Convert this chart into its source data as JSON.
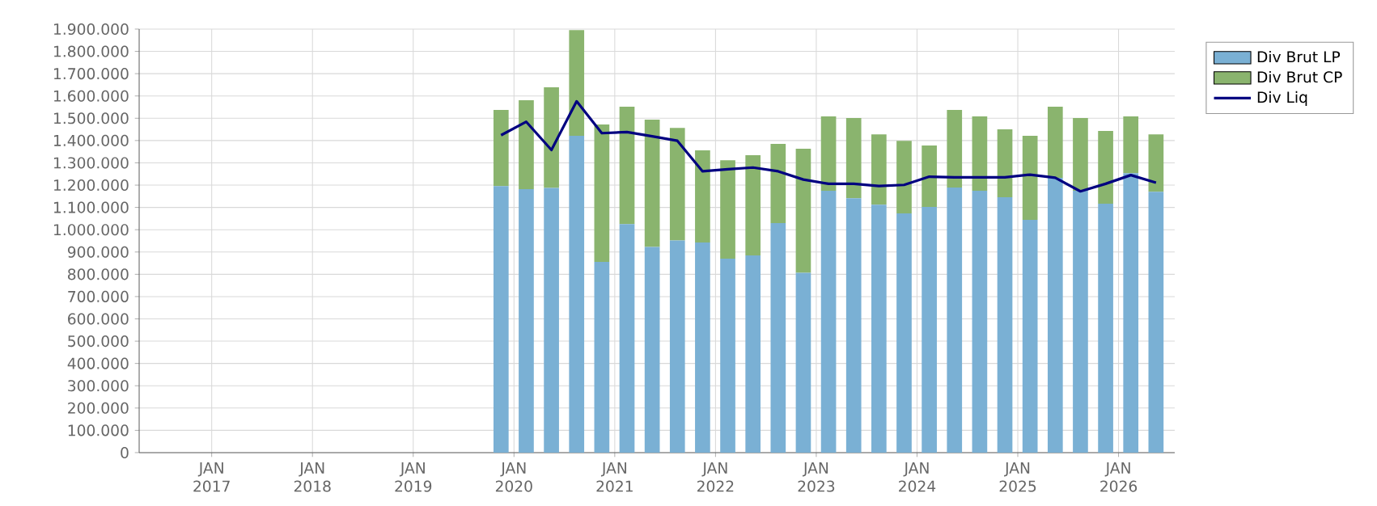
{
  "chart_data": {
    "type": "bar",
    "stacked": true,
    "x": [
      "2019-11-15",
      "2020-02-15",
      "2020-05-15",
      "2020-08-15",
      "2020-11-15",
      "2021-02-15",
      "2021-05-15",
      "2021-08-15",
      "2021-11-15",
      "2022-02-15",
      "2022-05-15",
      "2022-08-15",
      "2022-11-15",
      "2023-02-15",
      "2023-05-15",
      "2023-08-15",
      "2023-11-15",
      "2024-02-15",
      "2024-05-15",
      "2024-08-15",
      "2024-11-15",
      "2025-02-15",
      "2025-05-15",
      "2025-08-15",
      "2025-11-15",
      "2026-02-15",
      "2026-05-15"
    ],
    "series": [
      {
        "name": "Div Brut LP",
        "color": "#7ab0d4",
        "values": [
          1196000,
          1182000,
          1187000,
          1421000,
          856000,
          1025000,
          923000,
          952000,
          943000,
          870000,
          885000,
          1030000,
          807000,
          1175000,
          1141000,
          1112000,
          1073000,
          1102000,
          1189000,
          1175000,
          1146000,
          1044000,
          1233000,
          1175000,
          1117000,
          1254000,
          1170000
        ]
      },
      {
        "name": "Div Brut CP",
        "color": "#8ab46e",
        "values": [
          341000,
          399000,
          452000,
          474000,
          616000,
          527000,
          571000,
          505000,
          413000,
          442000,
          449000,
          355000,
          556000,
          333000,
          360000,
          316000,
          326000,
          276000,
          348000,
          333000,
          304000,
          377000,
          319000,
          326000,
          326000,
          254000,
          258000
        ]
      },
      {
        "name": "Div Liq",
        "type": "line",
        "color": "#000080",
        "values": [
          1424000,
          1484000,
          1358000,
          1576000,
          1433000,
          1438000,
          1419000,
          1399000,
          1262000,
          1271000,
          1279000,
          1262000,
          1225000,
          1206000,
          1206000,
          1196000,
          1201000,
          1238000,
          1235000,
          1235000,
          1235000,
          1247000,
          1233000,
          1172000,
          1206000,
          1245000,
          1211000
        ]
      }
    ],
    "xlim": [
      "2016-04-12",
      "2026-07-22"
    ],
    "xticks": [
      {
        "value": "2017-01-01",
        "label": "JAN 2017"
      },
      {
        "value": "2018-01-01",
        "label": "JAN 2018"
      },
      {
        "value": "2019-01-01",
        "label": "JAN 2019"
      },
      {
        "value": "2020-01-01",
        "label": "JAN 2020"
      },
      {
        "value": "2021-01-01",
        "label": "JAN 2021"
      },
      {
        "value": "2022-01-01",
        "label": "JAN 2022"
      },
      {
        "value": "2023-01-01",
        "label": "JAN 2023"
      },
      {
        "value": "2024-01-01",
        "label": "JAN 2024"
      },
      {
        "value": "2025-01-01",
        "label": "JAN 2025"
      },
      {
        "value": "2026-01-01",
        "label": "JAN 2026"
      }
    ],
    "ylim": [
      0,
      1900000
    ],
    "yticks": [
      0,
      {
        "value": 100000,
        "label": "100.000"
      },
      {
        "value": 200000,
        "label": "200.000"
      },
      {
        "value": 300000,
        "label": "300.000"
      },
      {
        "value": 400000,
        "label": "400.000"
      },
      {
        "value": 500000,
        "label": "500.000"
      },
      {
        "value": 600000,
        "label": "600.000"
      },
      {
        "value": 700000,
        "label": "700.000"
      },
      {
        "value": 800000,
        "label": "800.000"
      },
      {
        "value": 900000,
        "label": "900.000"
      },
      {
        "value": 1000000,
        "label": "1.000.000"
      },
      {
        "value": 1100000,
        "label": "1.100.000"
      },
      {
        "value": 1200000,
        "label": "1.200.000"
      },
      {
        "value": 1300000,
        "label": "1.300.000"
      },
      {
        "value": 1400000,
        "label": "1.400.000"
      },
      {
        "value": 1500000,
        "label": "1.500.000"
      },
      {
        "value": 1600000,
        "label": "1.600.000"
      },
      {
        "value": 1700000,
        "label": "1.700.000"
      },
      {
        "value": 1800000,
        "label": "1.800.000"
      },
      {
        "value": 1900000,
        "label": "1.900.000"
      }
    ],
    "grid": true,
    "legend": "top right"
  }
}
